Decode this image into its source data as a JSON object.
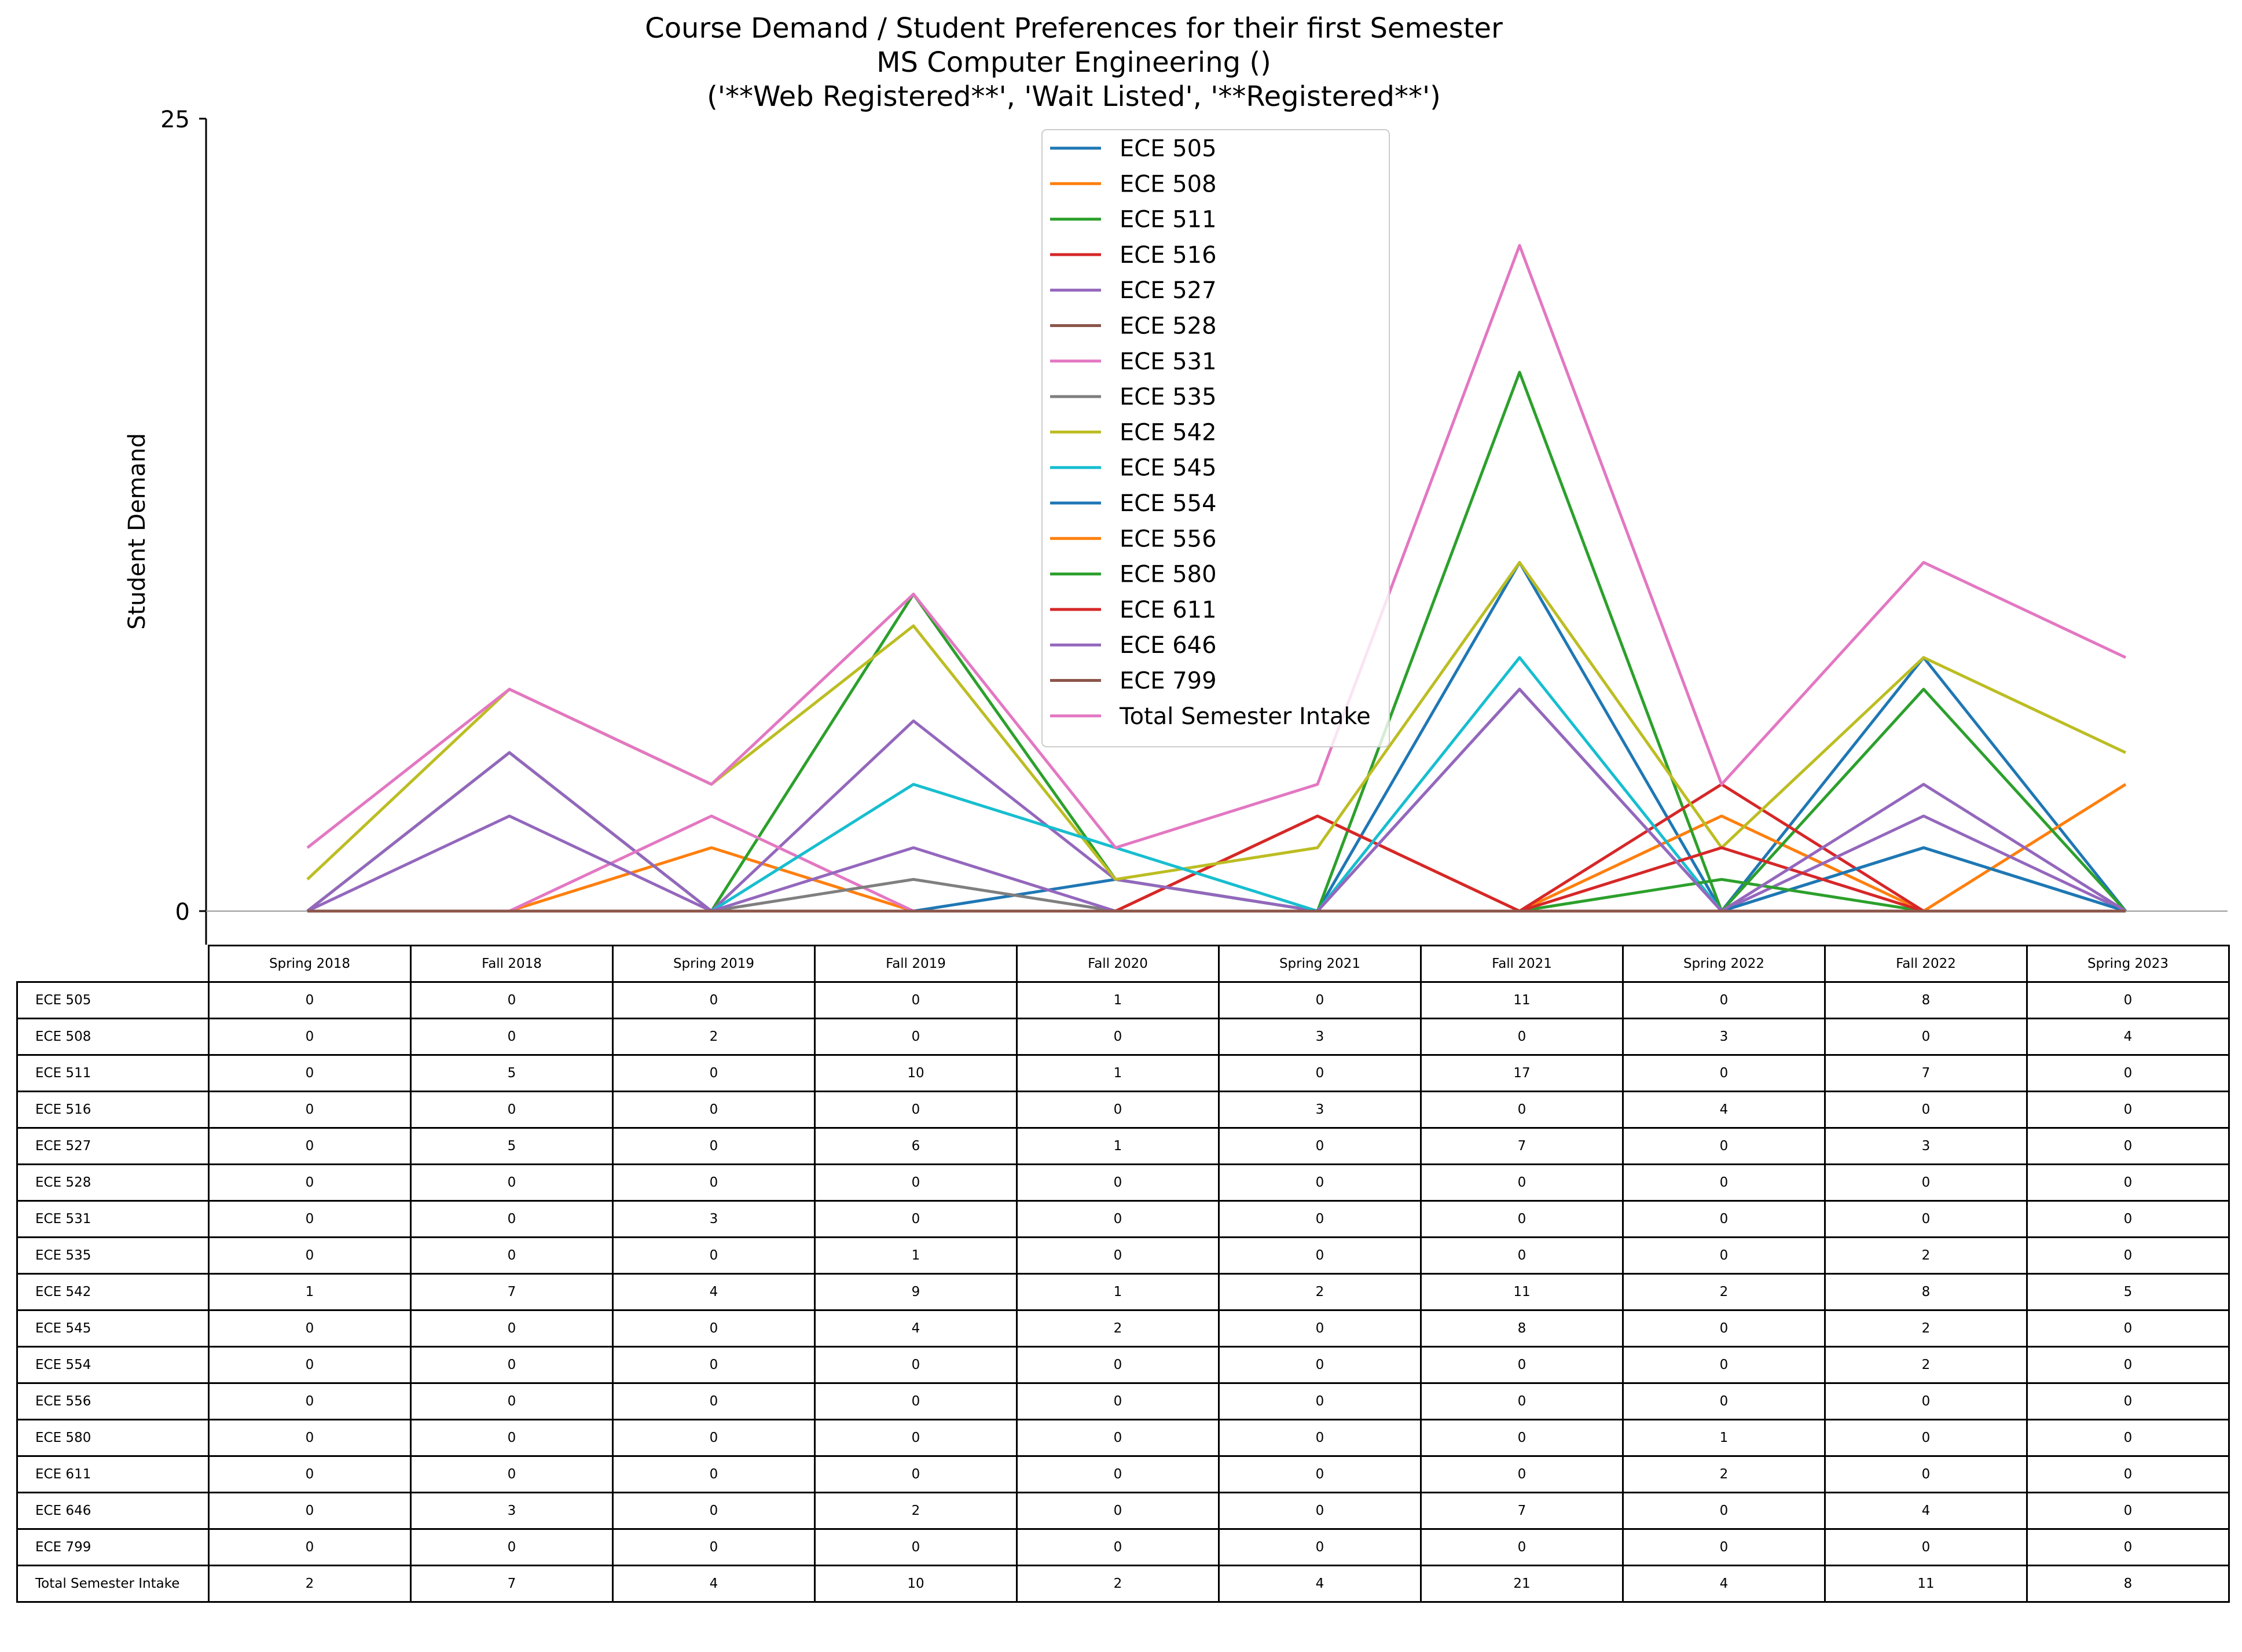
{
  "chart_data": {
    "type": "line",
    "title": "Course Demand / Student Preferences for their first Semester",
    "subtitle_1": "MS Computer Engineering ()",
    "subtitle_2": "('**Web Registered**', 'Wait Listed', '**Registered**')",
    "ylabel": "Student Demand",
    "xlabel": "",
    "ylim": [
      0,
      25
    ],
    "yticks": [
      "0",
      "25"
    ],
    "grid": false,
    "legend_position": "upper center",
    "categories": [
      "Spring 2018",
      "Fall 2018",
      "Spring 2019",
      "Fall 2019",
      "Fall 2020",
      "Spring 2021",
      "Fall 2021",
      "Spring 2022",
      "Fall 2022",
      "Spring 2023"
    ],
    "series": [
      {
        "name": "ECE 505",
        "color": "#1f77b4",
        "values": [
          0,
          0,
          0,
          0,
          1,
          0,
          11,
          0,
          8,
          0
        ]
      },
      {
        "name": "ECE 508",
        "color": "#ff7f0e",
        "values": [
          0,
          0,
          2,
          0,
          0,
          3,
          0,
          3,
          0,
          4
        ]
      },
      {
        "name": "ECE 511",
        "color": "#2ca02c",
        "values": [
          0,
          5,
          0,
          10,
          1,
          0,
          17,
          0,
          7,
          0
        ]
      },
      {
        "name": "ECE 516",
        "color": "#d62728",
        "values": [
          0,
          0,
          0,
          0,
          0,
          3,
          0,
          4,
          0,
          0
        ]
      },
      {
        "name": "ECE 527",
        "color": "#9467bd",
        "values": [
          0,
          5,
          0,
          6,
          1,
          0,
          7,
          0,
          3,
          0
        ]
      },
      {
        "name": "ECE 528",
        "color": "#8c564b",
        "values": [
          0,
          0,
          0,
          0,
          0,
          0,
          0,
          0,
          0,
          0
        ]
      },
      {
        "name": "ECE 531",
        "color": "#e377c2",
        "values": [
          0,
          0,
          3,
          0,
          0,
          0,
          0,
          0,
          0,
          0
        ]
      },
      {
        "name": "ECE 535",
        "color": "#7f7f7f",
        "values": [
          0,
          0,
          0,
          1,
          0,
          0,
          0,
          0,
          2,
          0
        ]
      },
      {
        "name": "ECE 542",
        "color": "#bcbd22",
        "values": [
          1,
          7,
          4,
          9,
          1,
          2,
          11,
          2,
          8,
          5
        ]
      },
      {
        "name": "ECE 545",
        "color": "#17becf",
        "values": [
          0,
          0,
          0,
          4,
          2,
          0,
          8,
          0,
          2,
          0
        ]
      },
      {
        "name": "ECE 554",
        "color": "#1f77b4",
        "values": [
          0,
          0,
          0,
          0,
          0,
          0,
          0,
          0,
          2,
          0
        ]
      },
      {
        "name": "ECE 556",
        "color": "#ff7f0e",
        "values": [
          0,
          0,
          0,
          0,
          0,
          0,
          0,
          0,
          0,
          0
        ]
      },
      {
        "name": "ECE 580",
        "color": "#2ca02c",
        "values": [
          0,
          0,
          0,
          0,
          0,
          0,
          0,
          1,
          0,
          0
        ]
      },
      {
        "name": "ECE 611",
        "color": "#d62728",
        "values": [
          0,
          0,
          0,
          0,
          0,
          0,
          0,
          2,
          0,
          0
        ]
      },
      {
        "name": "ECE 646",
        "color": "#9467bd",
        "values": [
          0,
          3,
          0,
          2,
          0,
          0,
          7,
          0,
          4,
          0
        ]
      },
      {
        "name": "ECE 799",
        "color": "#8c564b",
        "values": [
          0,
          0,
          0,
          0,
          0,
          0,
          0,
          0,
          0,
          0
        ]
      },
      {
        "name": "Total Semester Intake",
        "color": "#e377c2",
        "values": [
          2,
          7,
          4,
          10,
          2,
          4,
          21,
          4,
          11,
          8
        ]
      }
    ]
  }
}
